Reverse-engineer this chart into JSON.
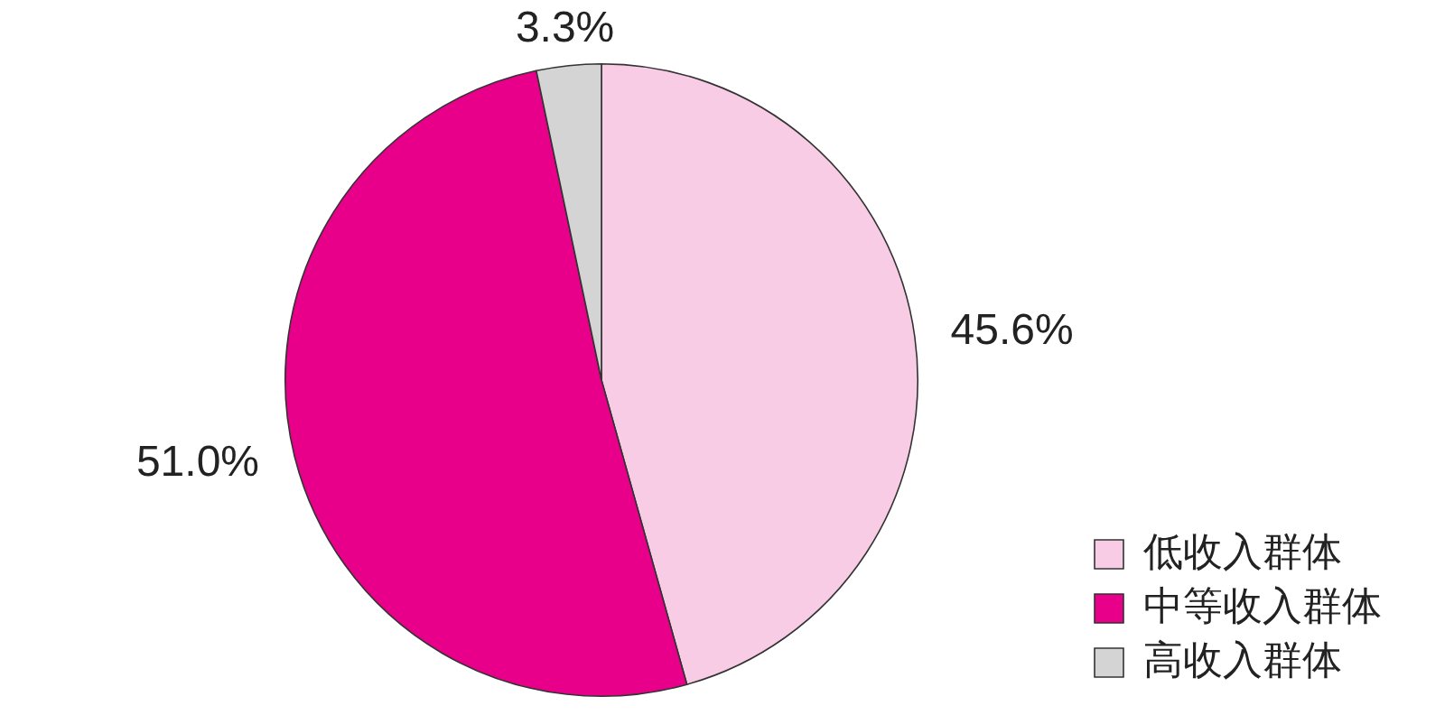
{
  "chart_data": {
    "type": "pie",
    "categories": [
      "低收入群体",
      "中等收入群体",
      "高收入群体"
    ],
    "values": [
      45.6,
      51.0,
      3.3
    ],
    "colors": [
      "#f9cce6",
      "#e8008a",
      "#d4d4d4"
    ],
    "value_labels": [
      "45.6%",
      "51.0%",
      "3.3%"
    ],
    "legend": "bottom right"
  }
}
